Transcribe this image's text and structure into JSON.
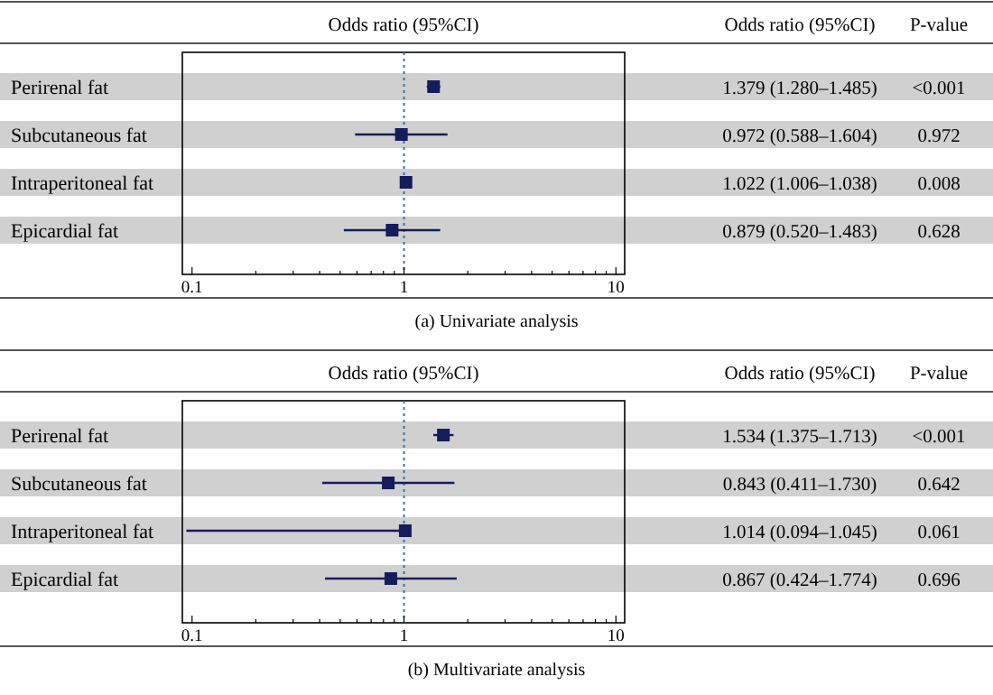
{
  "chart_data": [
    {
      "type": "scatter",
      "orientation": "horizontal",
      "title": "Odds ratio (95%CI)",
      "subtitle": "(a)  Univariate analysis",
      "categories": [
        "Perirenal fat",
        "Subcutaneous fat",
        "Intraperitoneal fat",
        "Epicardial fat"
      ],
      "color": "#141c5a",
      "values": [
        1.379,
        0.972,
        1.022,
        0.879
      ],
      "errors": [
        [
          1.28,
          1.485
        ],
        [
          0.588,
          1.604
        ],
        [
          1.006,
          1.038
        ],
        [
          0.52,
          1.483
        ]
      ],
      "value_labels": [
        "1.379 (1.280–1.485)",
        "0.972 (0.588–1.604)",
        "1.022 (1.006–1.038)",
        "0.879 (0.520–1.483)"
      ],
      "log": "x",
      "xlim": [
        0.09,
        11
      ],
      "marker": "square",
      "xticks": [
        0.1,
        {
          "value": 0.2,
          "label": null
        },
        {
          "value": 0.3,
          "label": null
        },
        {
          "value": 0.4,
          "label": null
        },
        {
          "value": 0.5,
          "label": null
        },
        {
          "value": 0.6,
          "label": null
        },
        {
          "value": 0.7,
          "label": null
        },
        {
          "value": 0.8,
          "label": null
        },
        {
          "value": 0.9,
          "label": null
        },
        1,
        {
          "value": 2,
          "label": null
        },
        {
          "value": 3,
          "label": null
        },
        {
          "value": 4,
          "label": null
        },
        {
          "value": 5,
          "label": null
        },
        {
          "value": 6,
          "label": null
        },
        {
          "value": 7,
          "label": null
        },
        {
          "value": 8,
          "label": null
        },
        {
          "value": 9,
          "label": null
        },
        10
      ],
      "ref_lines": [
        {
          "axis": "x",
          "value": 1,
          "color": "#3a6fb0",
          "line_style": "dotted"
        }
      ],
      "annotations": [
        "Odds ratio (95%CI)",
        "P-value",
        "<0.001",
        "0.972",
        "0.008",
        "0.628"
      ]
    },
    {
      "type": "scatter",
      "orientation": "horizontal",
      "title": "Odds ratio (95%CI)",
      "subtitle": "(b)  Multivariate analysis",
      "categories": [
        "Perirenal fat",
        "Subcutaneous fat",
        "Intraperitoneal fat",
        "Epicardial fat"
      ],
      "color": "#141c5a",
      "values": [
        1.534,
        0.843,
        1.014,
        0.867
      ],
      "errors": [
        [
          1.375,
          1.713
        ],
        [
          0.411,
          1.73
        ],
        [
          0.094,
          1.045
        ],
        [
          0.424,
          1.774
        ]
      ],
      "value_labels": [
        "1.534 (1.375–1.713)",
        "0.843 (0.411–1.730)",
        "1.014 (0.094–1.045)",
        "0.867 (0.424–1.774)"
      ],
      "log": "x",
      "xlim": [
        0.09,
        11
      ],
      "marker": "square",
      "xticks": [
        0.1,
        {
          "value": 0.2,
          "label": null
        },
        {
          "value": 0.3,
          "label": null
        },
        {
          "value": 0.4,
          "label": null
        },
        {
          "value": 0.5,
          "label": null
        },
        {
          "value": 0.6,
          "label": null
        },
        {
          "value": 0.7,
          "label": null
        },
        {
          "value": 0.8,
          "label": null
        },
        {
          "value": 0.9,
          "label": null
        },
        1,
        {
          "value": 2,
          "label": null
        },
        {
          "value": 3,
          "label": null
        },
        {
          "value": 4,
          "label": null
        },
        {
          "value": 5,
          "label": null
        },
        {
          "value": 6,
          "label": null
        },
        {
          "value": 7,
          "label": null
        },
        {
          "value": 8,
          "label": null
        },
        {
          "value": 9,
          "label": null
        },
        10
      ],
      "ref_lines": [
        {
          "axis": "x",
          "value": 1,
          "color": "#3a6fb0",
          "line_style": "dotted"
        }
      ],
      "annotations": [
        "Odds ratio (95%CI)",
        "P-value",
        "<0.001",
        "0.642",
        "0.061",
        "0.696"
      ]
    }
  ]
}
